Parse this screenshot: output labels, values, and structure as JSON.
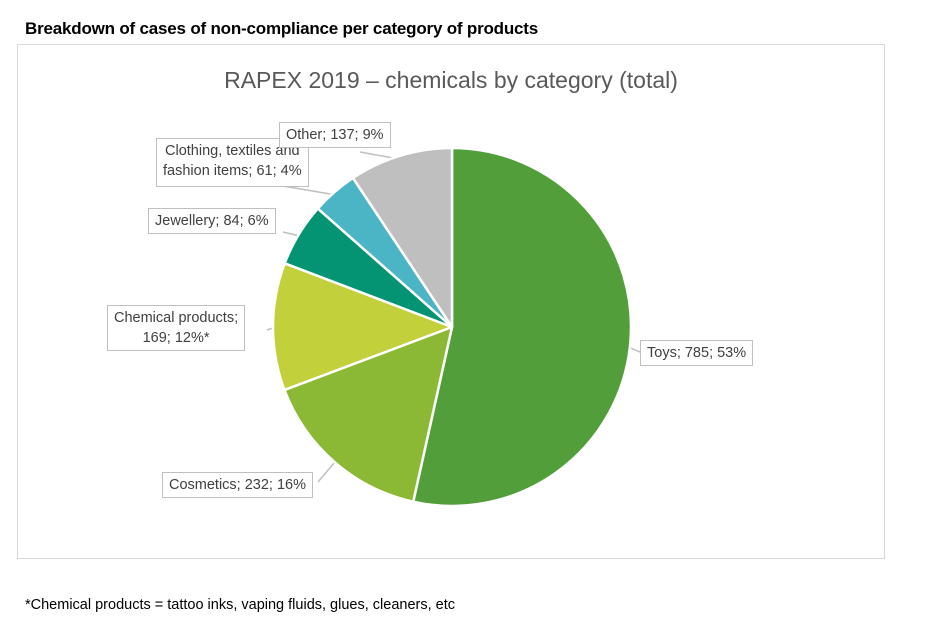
{
  "heading": "Breakdown of cases of non-compliance per category of products",
  "footnote": "*Chemical products = tattoo inks, vaping fluids, glues, cleaners, etc",
  "chart_data": {
    "type": "pie",
    "title": "RAPEX 2019 – chemicals by category (total)",
    "start": "top",
    "direction": "clockwise",
    "slices": [
      {
        "name": "Toys",
        "value": 785,
        "percent": 53,
        "label": "Toys; 785; 53%",
        "color": "#529E3A"
      },
      {
        "name": "Cosmetics",
        "value": 232,
        "percent": 16,
        "label": "Cosmetics; 232; 16%",
        "color": "#8BB935"
      },
      {
        "name": "Chemical products",
        "value": 169,
        "percent": 12,
        "label_line1": "Chemical products;",
        "label_line2": "169; 12%*",
        "color": "#C1D03B"
      },
      {
        "name": "Jewellery",
        "value": 84,
        "percent": 6,
        "label": "Jewellery; 84; 6%",
        "color": "#049474"
      },
      {
        "name": "Clothing, textiles and fashion items",
        "value": 61,
        "percent": 4,
        "label_line1": "Clothing, textiles and",
        "label_line2": "fashion items; 61; 4%",
        "color": "#4BB5C6"
      },
      {
        "name": "Other",
        "value": 137,
        "percent": 9,
        "label": "Other; 137; 9%",
        "color": "#BFBFBF"
      }
    ]
  }
}
